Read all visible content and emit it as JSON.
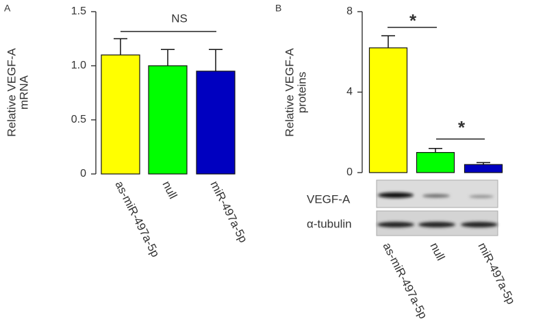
{
  "chart_data": [
    {
      "type": "bar",
      "panel": "A",
      "ylabel": [
        "Relative VEGF-A",
        "mRNA"
      ],
      "categories": [
        "as-miR-497a-5p",
        "null",
        "miR-497a-5p"
      ],
      "values": [
        1.1,
        1.0,
        0.95
      ],
      "errors": [
        0.15,
        0.15,
        0.2
      ],
      "colors": [
        "#ffff00",
        "#00ff00",
        "#0000c0"
      ],
      "ylim": [
        0,
        1.5
      ],
      "yticks": [
        0,
        0.5,
        {
          "value": 1,
          "label": "1.0"
        },
        1.5
      ],
      "annotations": [
        "NS"
      ]
    },
    {
      "type": "bar",
      "panel": "B",
      "ylabel": [
        "Relative VEGF-A",
        "proteins"
      ],
      "categories": [
        "as-miR-497a-5p",
        "null",
        "miR-497a-5p"
      ],
      "values": [
        6.2,
        1.0,
        0.4
      ],
      "errors": [
        0.6,
        0.2,
        0.1
      ],
      "colors": [
        "#ffff00",
        "#00ff00",
        "#0000c0"
      ],
      "ylim": [
        0,
        8
      ],
      "yticks": [
        0,
        4,
        8
      ],
      "annotations": [
        "*",
        "*"
      ],
      "blot_labels": [
        "VEGF-A",
        "α-tubulin"
      ]
    }
  ]
}
